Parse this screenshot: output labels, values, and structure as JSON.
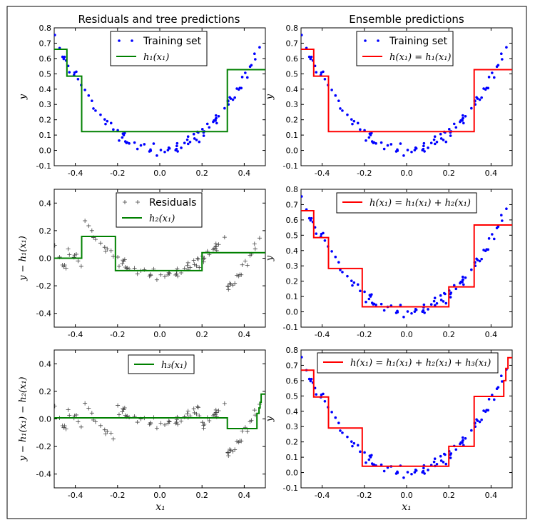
{
  "figure": {
    "col_titles": [
      "Residuals and tree predictions",
      "Ensemble predictions"
    ],
    "xlabel": "x₁",
    "colors": {
      "points": "#0000ff",
      "residuals": "#444444",
      "tree": "#008000",
      "ensemble": "#ff0000"
    }
  },
  "chart_data": [
    {
      "type": "scatter",
      "panel": "r0c0",
      "title": "Residuals and tree predictions",
      "ylabel": "y",
      "xlabel": "",
      "xlim": [
        -0.5,
        0.5
      ],
      "ylim": [
        -0.1,
        0.8
      ],
      "xticks": [
        -0.4,
        -0.2,
        0.0,
        0.2,
        0.4
      ],
      "yticks": [
        -0.1,
        0.0,
        0.1,
        0.2,
        0.3,
        0.4,
        0.5,
        0.6,
        0.7,
        0.8
      ],
      "legend": [
        "Training set",
        "h₁(x₁)"
      ],
      "legend_position": "top-center",
      "series": [
        {
          "name": "Training set",
          "kind": "points",
          "color": "#0000ff"
        },
        {
          "name": "h₁(x₁)",
          "kind": "step",
          "color": "#008000",
          "x": [
            -0.5,
            -0.44,
            -0.44,
            -0.37,
            -0.37,
            0.32,
            0.32,
            0.5
          ],
          "y": [
            0.66,
            0.66,
            0.485,
            0.485,
            0.123,
            0.123,
            0.527,
            0.527
          ]
        }
      ]
    },
    {
      "type": "scatter",
      "panel": "r0c1",
      "title": "Ensemble predictions",
      "ylabel": "y",
      "xlabel": "",
      "xlim": [
        -0.5,
        0.5
      ],
      "ylim": [
        -0.1,
        0.8
      ],
      "xticks": [
        -0.4,
        -0.2,
        0.0,
        0.2,
        0.4
      ],
      "yticks": [
        -0.1,
        0.0,
        0.1,
        0.2,
        0.3,
        0.4,
        0.5,
        0.6,
        0.7,
        0.8
      ],
      "legend": [
        "Training set",
        "h(x₁) = h₁(x₁)"
      ],
      "legend_position": "top-center",
      "series": [
        {
          "name": "Training set",
          "kind": "points",
          "color": "#0000ff"
        },
        {
          "name": "h(x₁) = h₁(x₁)",
          "kind": "step",
          "color": "#ff0000",
          "x": [
            -0.5,
            -0.44,
            -0.44,
            -0.37,
            -0.37,
            0.32,
            0.32,
            0.5
          ],
          "y": [
            0.66,
            0.66,
            0.485,
            0.485,
            0.123,
            0.123,
            0.527,
            0.527
          ]
        }
      ]
    },
    {
      "type": "scatter",
      "panel": "r1c0",
      "ylabel": "y − h₁(x₁)",
      "xlabel": "",
      "xlim": [
        -0.5,
        0.5
      ],
      "ylim": [
        -0.5,
        0.5
      ],
      "xticks": [
        -0.4,
        -0.2,
        0.0,
        0.2,
        0.4
      ],
      "yticks": [
        -0.4,
        -0.2,
        0.0,
        0.2,
        0.4
      ],
      "legend": [
        "Residuals",
        "h₂(x₁)"
      ],
      "legend_position": "top-center",
      "series": [
        {
          "name": "Residuals",
          "kind": "plus",
          "color": "#444444"
        },
        {
          "name": "h₂(x₁)",
          "kind": "step",
          "color": "#008000",
          "x": [
            -0.5,
            -0.37,
            -0.37,
            -0.21,
            -0.21,
            0.2,
            0.2,
            0.5
          ],
          "y": [
            0.0,
            0.0,
            0.158,
            0.158,
            -0.09,
            -0.09,
            0.04,
            0.04
          ]
        }
      ]
    },
    {
      "type": "scatter",
      "panel": "r1c1",
      "ylabel": "y",
      "xlabel": "",
      "xlim": [
        -0.5,
        0.5
      ],
      "ylim": [
        -0.1,
        0.8
      ],
      "xticks": [
        -0.4,
        -0.2,
        0.0,
        0.2,
        0.4
      ],
      "yticks": [
        -0.1,
        0.0,
        0.1,
        0.2,
        0.3,
        0.4,
        0.5,
        0.6,
        0.7,
        0.8
      ],
      "legend": [
        "h(x₁) = h₁(x₁) + h₂(x₁)"
      ],
      "legend_position": "top-center",
      "series": [
        {
          "name": "Training set",
          "kind": "points",
          "color": "#0000ff"
        },
        {
          "name": "h(x₁) = h₁(x₁) + h₂(x₁)",
          "kind": "step",
          "color": "#ff0000",
          "x": [
            -0.5,
            -0.44,
            -0.44,
            -0.37,
            -0.37,
            -0.21,
            -0.21,
            0.2,
            0.2,
            0.32,
            0.32,
            0.5
          ],
          "y": [
            0.66,
            0.66,
            0.485,
            0.485,
            0.283,
            0.283,
            0.033,
            0.033,
            0.163,
            0.163,
            0.567,
            0.567
          ]
        }
      ]
    },
    {
      "type": "scatter",
      "panel": "r2c0",
      "ylabel": "y − h₁(x₁) − h₂(x₁)",
      "xlabel": "x₁",
      "xlim": [
        -0.5,
        0.5
      ],
      "ylim": [
        -0.5,
        0.5
      ],
      "xticks": [
        -0.4,
        -0.2,
        0.0,
        0.2,
        0.4
      ],
      "yticks": [
        -0.4,
        -0.2,
        0.0,
        0.2,
        0.4
      ],
      "legend": [
        "h₃(x₁)"
      ],
      "legend_position": "top-center",
      "series": [
        {
          "name": "Residuals",
          "kind": "plus",
          "color": "#444444"
        },
        {
          "name": "h₃(x₁)",
          "kind": "step",
          "color": "#008000",
          "x": [
            -0.5,
            0.32,
            0.32,
            0.46,
            0.46,
            0.47,
            0.47,
            0.475,
            0.475,
            0.48,
            0.48,
            0.5
          ],
          "y": [
            0.008,
            0.008,
            -0.07,
            -0.07,
            0.04,
            0.04,
            0.08,
            0.08,
            0.12,
            0.12,
            0.18,
            0.18
          ]
        }
      ]
    },
    {
      "type": "scatter",
      "panel": "r2c1",
      "ylabel": "y",
      "xlabel": "x₁",
      "xlim": [
        -0.5,
        0.5
      ],
      "ylim": [
        -0.1,
        0.8
      ],
      "xticks": [
        -0.4,
        -0.2,
        0.0,
        0.2,
        0.4
      ],
      "yticks": [
        -0.1,
        0.0,
        0.1,
        0.2,
        0.3,
        0.4,
        0.5,
        0.6,
        0.7,
        0.8
      ],
      "legend": [
        "h(x₁) = h₁(x₁) + h₂(x₁) + h₃(x₁)"
      ],
      "legend_position": "top-center",
      "series": [
        {
          "name": "Training set",
          "kind": "points",
          "color": "#0000ff"
        },
        {
          "name": "h(x₁) = h₁(x₁) + h₂(x₁) + h₃(x₁)",
          "kind": "step",
          "color": "#ff0000",
          "x": [
            -0.5,
            -0.44,
            -0.44,
            -0.37,
            -0.37,
            -0.21,
            -0.21,
            0.2,
            0.2,
            0.32,
            0.32,
            0.46,
            0.46,
            0.47,
            0.47,
            0.48,
            0.48,
            0.5
          ],
          "y": [
            0.668,
            0.668,
            0.493,
            0.493,
            0.291,
            0.291,
            0.041,
            0.041,
            0.171,
            0.171,
            0.497,
            0.497,
            0.6,
            0.6,
            0.68,
            0.68,
            0.75,
            0.75
          ]
        }
      ]
    }
  ]
}
